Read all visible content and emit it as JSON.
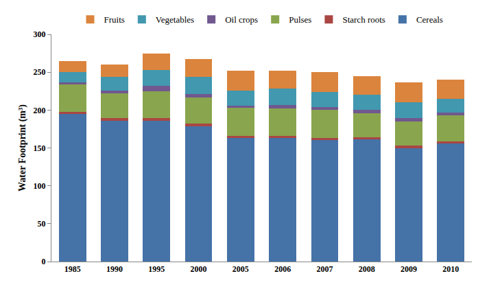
{
  "chart_data": {
    "type": "bar",
    "stacked": true,
    "y_label": "Water Footprint (m³)",
    "categories": [
      "1985",
      "1990",
      "1995",
      "2000",
      "2005",
      "2006",
      "2007",
      "2008",
      "2009",
      "2010"
    ],
    "series": [
      {
        "name": "Cereals",
        "color": "#4572A7",
        "values": [
          195,
          186,
          186,
          179,
          163,
          163,
          160,
          161,
          150,
          156
        ]
      },
      {
        "name": "Starch roots",
        "color": "#AA4643",
        "values": [
          3,
          3,
          3,
          3,
          3,
          3,
          3,
          3,
          3,
          3
        ]
      },
      {
        "name": "Pulses",
        "color": "#89A54E",
        "values": [
          36,
          33,
          36,
          35,
          37,
          36,
          37,
          32,
          32,
          34
        ]
      },
      {
        "name": "Oil crops",
        "color": "#71588F",
        "values": [
          3,
          4,
          7,
          4,
          3,
          5,
          4,
          4,
          4,
          4
        ]
      },
      {
        "name": "Vegetables",
        "color": "#4198AF",
        "values": [
          13,
          18,
          21,
          23,
          20,
          21,
          20,
          20,
          21,
          18
        ]
      },
      {
        "name": "Fruits",
        "color": "#DB843D",
        "values": [
          15,
          16,
          22,
          23,
          26,
          24,
          26,
          25,
          27,
          25
        ]
      }
    ],
    "ylim": [
      0,
      300
    ],
    "yticks": [
      0,
      50,
      100,
      150,
      200,
      250,
      300
    ],
    "grid": false,
    "legend": "top"
  }
}
